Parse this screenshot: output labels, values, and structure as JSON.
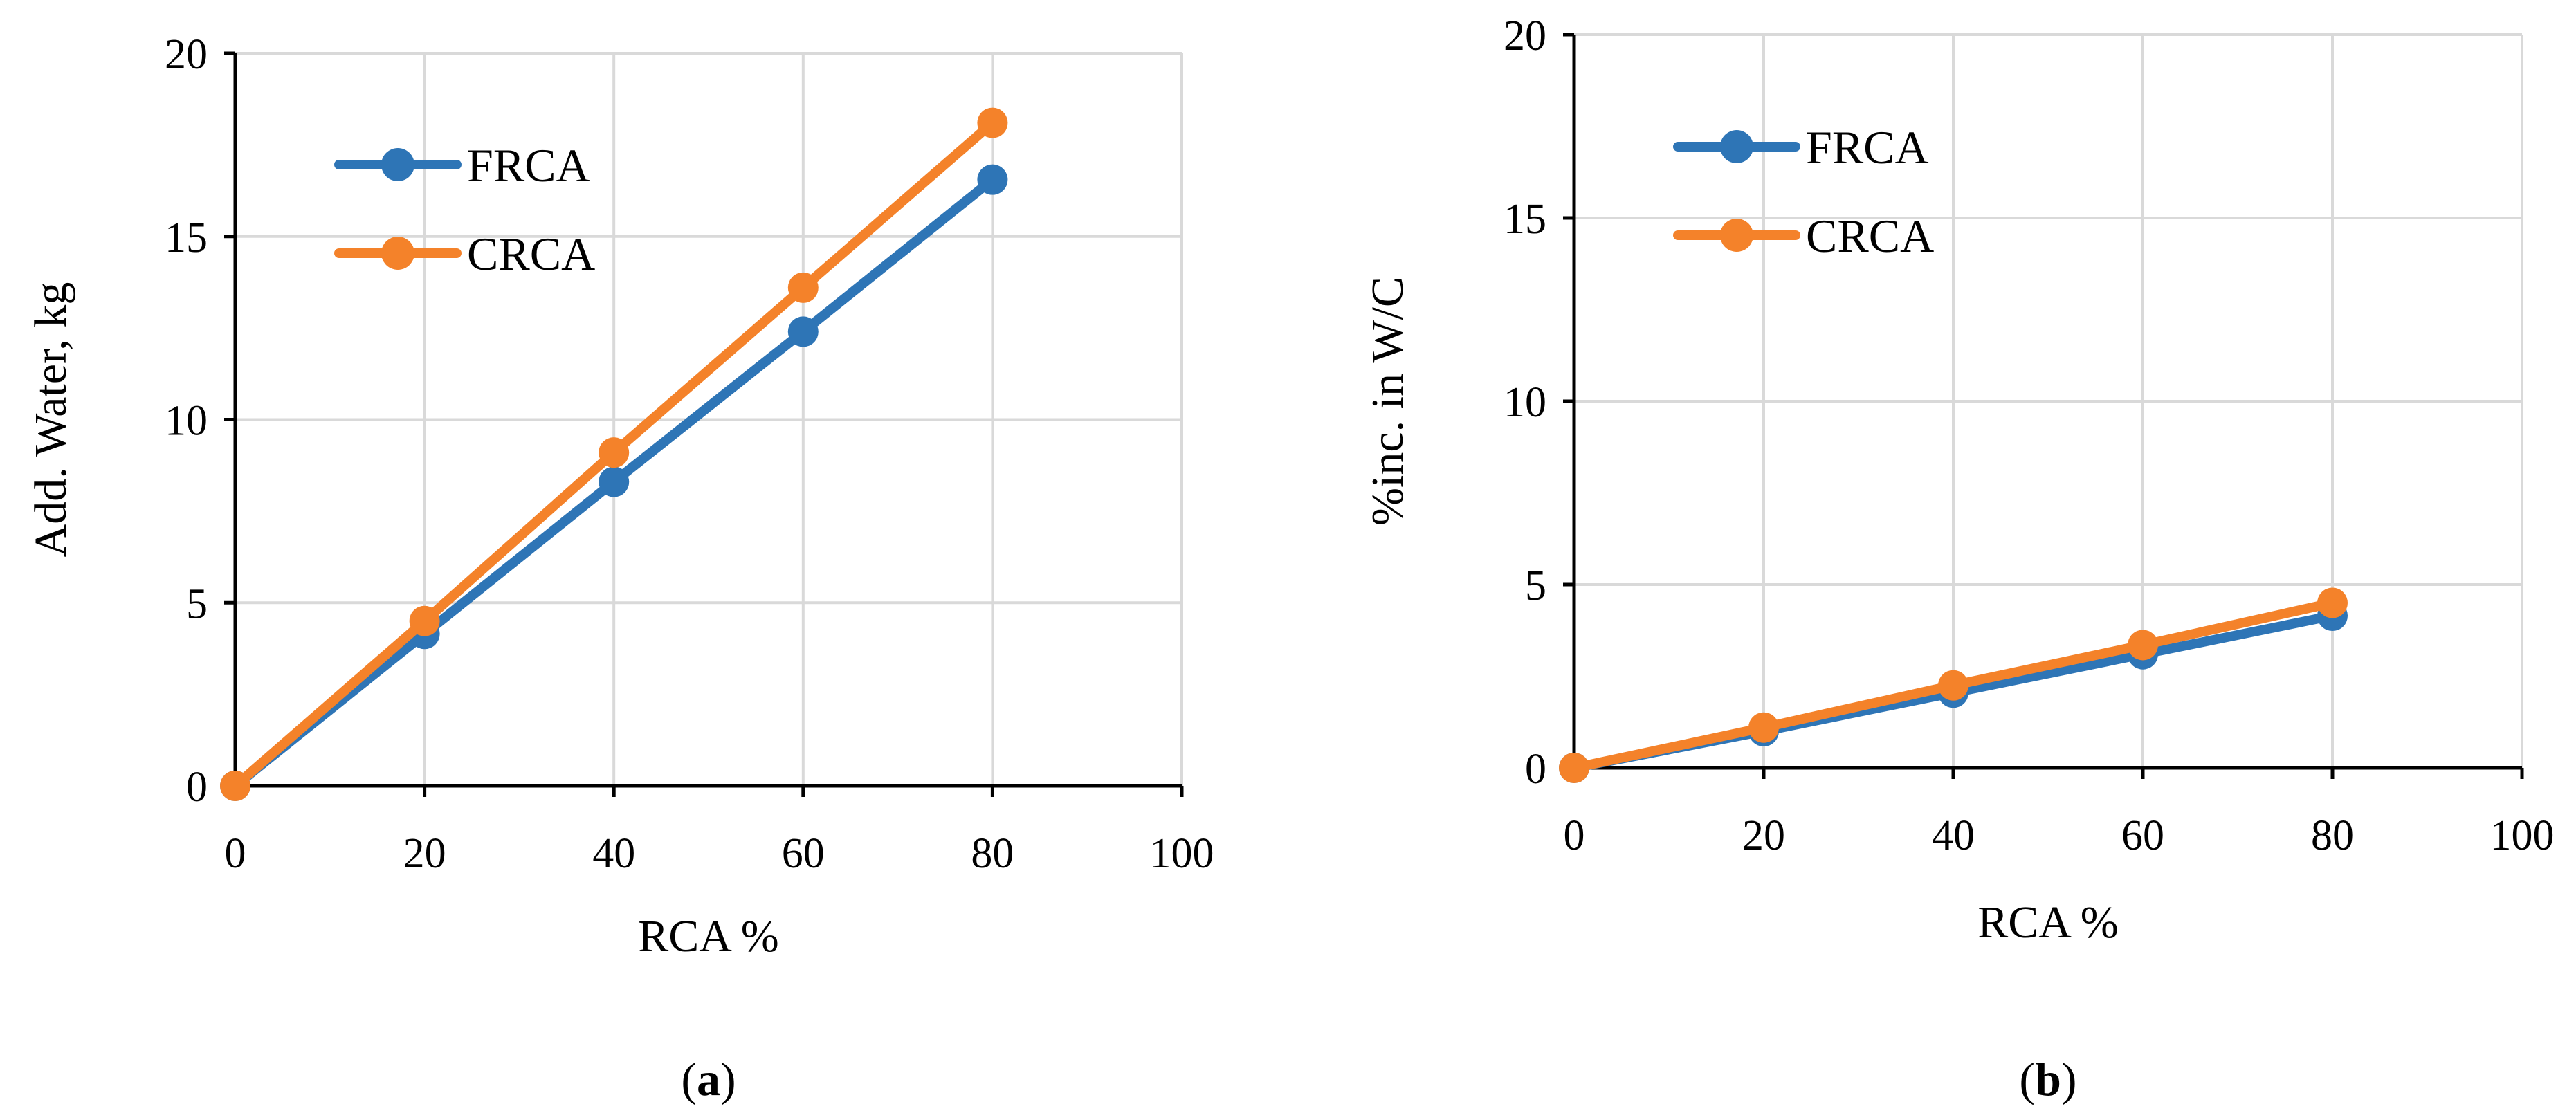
{
  "chart_data": [
    {
      "type": "line",
      "title": "",
      "caption_letter": "a",
      "xlabel": "RCA %",
      "ylabel": "Add. Water, kg",
      "xlim": [
        0,
        100
      ],
      "ylim": [
        0,
        20
      ],
      "xticks": [
        0,
        20,
        40,
        60,
        80,
        100
      ],
      "yticks": [
        0,
        5,
        10,
        15,
        20
      ],
      "grid": true,
      "legend_position": "top-left",
      "x": [
        0,
        20,
        40,
        60,
        80
      ],
      "series": [
        {
          "name": "FRCA",
          "color": "#2e75b6",
          "values": [
            0,
            4.15,
            8.3,
            12.4,
            16.55
          ]
        },
        {
          "name": "CRCA",
          "color": "#f4822a",
          "values": [
            0,
            4.5,
            9.1,
            13.6,
            18.1
          ]
        }
      ]
    },
    {
      "type": "line",
      "title": "",
      "caption_letter": "b",
      "xlabel": "RCA %",
      "ylabel": "%inc. in W/C",
      "xlim": [
        0,
        100
      ],
      "ylim": [
        0,
        20
      ],
      "xticks": [
        0,
        20,
        40,
        60,
        80,
        100
      ],
      "yticks": [
        0,
        5,
        10,
        15,
        20
      ],
      "grid": true,
      "legend_position": "top-left",
      "x": [
        0,
        20,
        40,
        60,
        80
      ],
      "series": [
        {
          "name": "FRCA",
          "color": "#2e75b6",
          "values": [
            0,
            1.0,
            2.05,
            3.1,
            4.15
          ]
        },
        {
          "name": "CRCA",
          "color": "#f4822a",
          "values": [
            0,
            1.1,
            2.25,
            3.35,
            4.5
          ]
        }
      ]
    }
  ]
}
